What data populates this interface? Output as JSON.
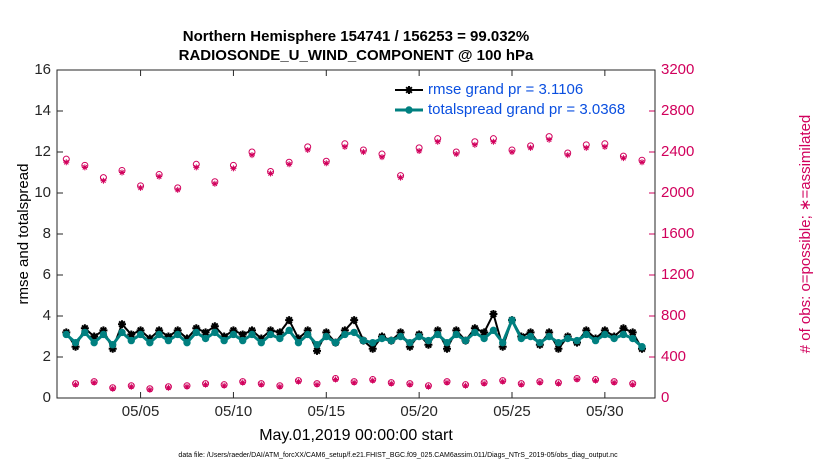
{
  "chart_data": {
    "type": "line",
    "title": "Northern Hemisphere 154741 / 156253 = 99.032%",
    "subtitle": "RADIOSONDE_U_WIND_COMPONENT @ 100 hPa",
    "xlabel": "May.01,2019 00:00:00 start",
    "ylabel": "rmse and totalspread",
    "y2label": "# of obs: o=possible; ∗=assimilated",
    "footnote": "data file: /Users/raeder/DAI/ATM_forcXX/CAM6_setup/f.e21.FHIST_BGC.f09_025.CAM6assim.011/Diags_NTrS_2019-05/obs_diag_output.nc",
    "legend": "northeast",
    "x": [
      0,
      0.5,
      1,
      1.5,
      2,
      2.5,
      3,
      3.5,
      4,
      4.5,
      5,
      5.5,
      6,
      6.5,
      7,
      7.5,
      8,
      8.5,
      9,
      9.5,
      10,
      10.5,
      11,
      11.5,
      12,
      12.5,
      13,
      13.5,
      14,
      14.5,
      15,
      15.5,
      16,
      16.5,
      17,
      17.5,
      18,
      18.5,
      19,
      19.5,
      20,
      20.5,
      21,
      21.5,
      22,
      22.5,
      23,
      23.5,
      24,
      24.5,
      25,
      25.5,
      26,
      26.5,
      27,
      27.5,
      28,
      28.5,
      29,
      29.5,
      30,
      30.5,
      31
    ],
    "xlim": [
      -0.5,
      31.7
    ],
    "xticks": [
      {
        "value": 4,
        "label": "05/05"
      },
      {
        "value": 9,
        "label": "05/10"
      },
      {
        "value": 14,
        "label": "05/15"
      },
      {
        "value": 19,
        "label": "05/20"
      },
      {
        "value": 24,
        "label": "05/25"
      },
      {
        "value": 29,
        "label": "05/30"
      }
    ],
    "ylim": [
      0,
      16
    ],
    "yticks": [
      0,
      2,
      4,
      6,
      8,
      10,
      12,
      14,
      16
    ],
    "y2lim": [
      0,
      3200
    ],
    "y2ticks": [
      0,
      400,
      800,
      1200,
      1600,
      2000,
      2400,
      2800,
      3200
    ],
    "series": [
      {
        "name": "rmse grand pr = 3.1106",
        "color": "#000000",
        "marker": "star",
        "values": [
          3.2,
          2.5,
          3.4,
          3.0,
          3.3,
          2.4,
          3.6,
          3.1,
          3.3,
          2.9,
          3.3,
          3.0,
          3.3,
          2.9,
          3.4,
          3.2,
          3.5,
          3.0,
          3.3,
          3.1,
          3.3,
          2.9,
          3.3,
          3.2,
          3.8,
          2.9,
          3.3,
          2.3,
          3.2,
          2.7,
          3.3,
          3.8,
          2.8,
          2.4,
          3.0,
          2.8,
          3.2,
          2.5,
          3.1,
          2.6,
          3.3,
          2.4,
          3.3,
          2.8,
          3.4,
          3.2,
          4.1,
          2.5,
          3.8,
          3.0,
          3.2,
          2.6,
          3.2,
          2.4,
          3.0,
          2.7,
          3.3,
          2.9,
          3.3,
          3.0,
          3.4,
          3.2,
          2.4
        ]
      },
      {
        "name": "totalspread grand pr = 3.0368",
        "color": "#008080",
        "marker": "dot",
        "values": [
          3.1,
          2.7,
          3.2,
          2.7,
          3.1,
          2.6,
          3.2,
          2.8,
          3.1,
          2.7,
          3.1,
          2.8,
          3.1,
          2.7,
          3.2,
          2.9,
          3.2,
          2.8,
          3.1,
          2.8,
          3.1,
          2.7,
          3.1,
          2.9,
          3.3,
          2.7,
          3.1,
          2.6,
          3.0,
          2.7,
          3.1,
          3.2,
          2.8,
          2.7,
          2.9,
          2.8,
          3.0,
          2.7,
          3.0,
          2.8,
          3.1,
          2.7,
          3.1,
          2.8,
          3.2,
          2.9,
          3.3,
          2.7,
          3.8,
          2.9,
          3.0,
          2.7,
          3.0,
          2.7,
          2.9,
          2.8,
          3.1,
          2.8,
          3.1,
          2.9,
          3.1,
          2.9,
          2.5
        ]
      },
      {
        "color": "#d1005c",
        "marker": "ring",
        "axis": "y2",
        "values": [
          2330,
          140,
          2270,
          160,
          2150,
          100,
          2220,
          120,
          2070,
          90,
          2180,
          110,
          2050,
          120,
          2280,
          140,
          2110,
          130,
          2270,
          160,
          2400,
          140,
          2210,
          120,
          2300,
          170,
          2450,
          140,
          2310,
          190,
          2480,
          160,
          2420,
          180,
          2380,
          150,
          2170,
          140,
          2440,
          120,
          2530,
          160,
          2400,
          130,
          2500,
          150,
          2530,
          170,
          2420,
          140,
          2460,
          160,
          2550,
          150,
          2390,
          190,
          2470,
          180,
          2480,
          160,
          2360,
          140,
          2320
        ]
      },
      {
        "color": "#d1005c",
        "marker": "asterisk",
        "axis": "y2",
        "values": [
          2300,
          130,
          2250,
          150,
          2120,
          90,
          2200,
          110,
          2050,
          80,
          2160,
          100,
          2030,
          110,
          2250,
          130,
          2090,
          120,
          2240,
          150,
          2370,
          130,
          2190,
          110,
          2280,
          160,
          2420,
          130,
          2290,
          180,
          2450,
          150,
          2400,
          170,
          2350,
          140,
          2150,
          130,
          2410,
          110,
          2500,
          150,
          2380,
          120,
          2470,
          140,
          2500,
          160,
          2400,
          130,
          2440,
          150,
          2520,
          140,
          2370,
          180,
          2440,
          170,
          2450,
          150,
          2340,
          130,
          2300
        ]
      }
    ]
  }
}
